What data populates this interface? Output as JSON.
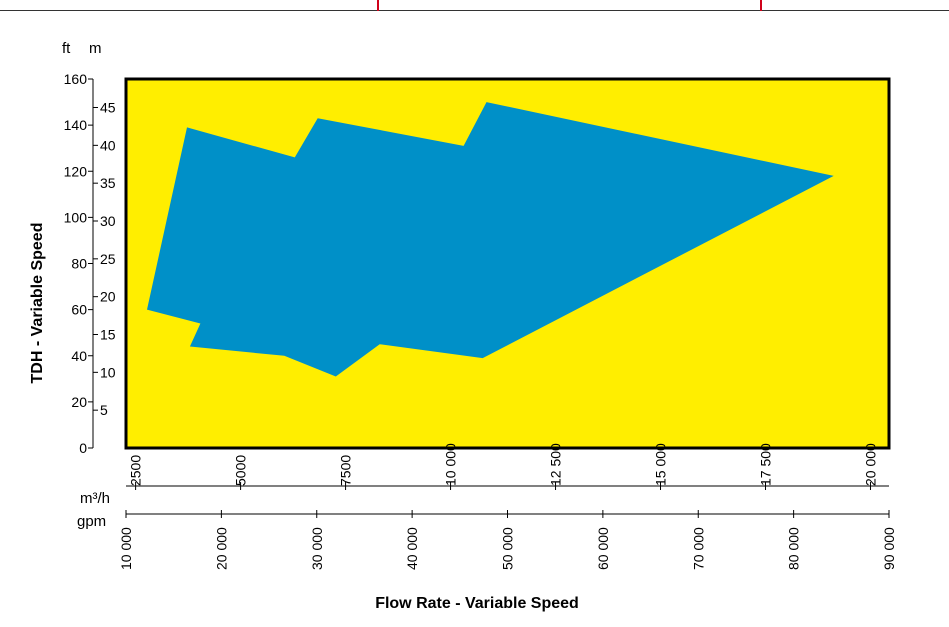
{
  "chart_data": {
    "type": "area",
    "title": "",
    "xlabel": "Flow Rate - Variable Speed",
    "ylabel": "TDH - Variable Speed",
    "y_units": {
      "primary": "ft",
      "secondary": "m"
    },
    "x_units": {
      "primary": "gpm",
      "secondary": "m³/h"
    },
    "ylim": [
      0,
      160
    ],
    "xlim": [
      10000,
      90000
    ],
    "y_ticks_ft": [
      "0",
      "20",
      "40",
      "60",
      "80",
      "100",
      "120",
      "140",
      "160"
    ],
    "y_ticks_m": [
      "5",
      "10",
      "15",
      "20",
      "25",
      "30",
      "35",
      "40",
      "45"
    ],
    "x_ticks_gpm": [
      "10 000",
      "20 000",
      "30 000",
      "40 000",
      "50 000",
      "60 000",
      "70 000",
      "80 000",
      "90 000"
    ],
    "x_ticks_m3h": [
      "2500",
      "5000",
      "7500",
      "10 000",
      "12 500",
      "15 000",
      "17 500",
      "20 000"
    ],
    "plot_background": "#ffee00",
    "region_color": "#0090c8",
    "grid": false,
    "legend": "none",
    "series": [
      {
        "x": [
          12200,
          16400,
          27700,
          30100,
          45400,
          47800,
          84200,
          47400,
          36600,
          32000,
          26600,
          16700,
          17800,
          12200
        ],
        "y": [
          60,
          139,
          126,
          143,
          131,
          150,
          118,
          39,
          45,
          31,
          40,
          44,
          54,
          60
        ]
      }
    ]
  }
}
